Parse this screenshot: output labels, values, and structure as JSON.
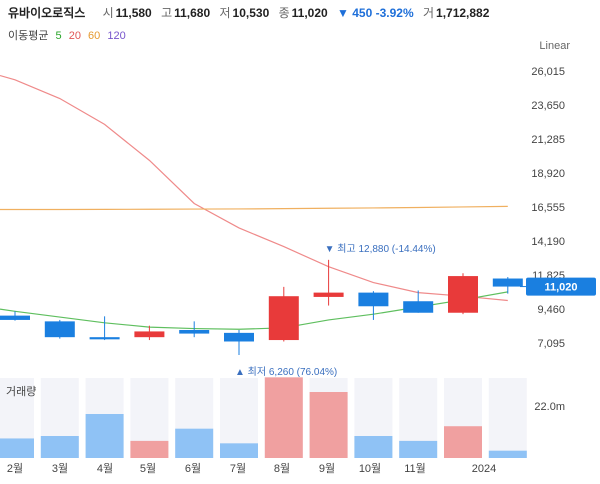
{
  "header": {
    "name": "유바이오로직스",
    "open_label": "시",
    "open": "11,580",
    "high_label": "고",
    "high": "11,680",
    "low_label": "저",
    "low": "10,530",
    "close_label": "종",
    "close": "11,020",
    "change": "▼ 450 -3.92%",
    "volume_label": "거",
    "volume": "1,712,882"
  },
  "ma_legend": {
    "label": "이동평균",
    "periods": [
      {
        "value": "5",
        "color": "#2aa52a"
      },
      {
        "value": "20",
        "color": "#e05555"
      },
      {
        "value": "60",
        "color": "#e69a2e"
      },
      {
        "value": "120",
        "color": "#7755cc"
      }
    ]
  },
  "scale_type": "Linear",
  "current_price_tag": "11,020",
  "colors": {
    "up": "#e83a3a",
    "down": "#1a7fe0",
    "up_vol": "#f0a0a0",
    "down_vol": "#8fc2f5",
    "ma5": "#5fbf5f",
    "ma20": "#ef8a8a",
    "ma60": "#f0b060"
  },
  "chart_data": {
    "type": "candlestick",
    "y_ticks": [
      "26,015",
      "23,650",
      "21,285",
      "18,920",
      "16,555",
      "14,190",
      "11,825",
      "9,460",
      "7,095"
    ],
    "ylim": [
      7095,
      26015
    ],
    "x_labels": [
      "2월",
      "3월",
      "4월",
      "5월",
      "6월",
      "7월",
      "8월",
      "9월",
      "10월",
      "11월",
      "2024"
    ],
    "candles": [
      {
        "o": 9000,
        "h": 9300,
        "l": 8650,
        "c": 8700
      },
      {
        "o": 8600,
        "h": 8700,
        "l": 7400,
        "c": 7500
      },
      {
        "o": 7500,
        "h": 8950,
        "l": 7300,
        "c": 7350
      },
      {
        "o": 7500,
        "h": 8300,
        "l": 7300,
        "c": 7900
      },
      {
        "o": 8000,
        "h": 8600,
        "l": 7500,
        "c": 7750
      },
      {
        "o": 7800,
        "h": 8000,
        "l": 6260,
        "c": 7200
      },
      {
        "o": 7300,
        "h": 11000,
        "l": 7200,
        "c": 10350
      },
      {
        "o": 10300,
        "h": 12880,
        "l": 9700,
        "c": 10600
      },
      {
        "o": 10600,
        "h": 10700,
        "l": 8700,
        "c": 9650
      },
      {
        "o": 10000,
        "h": 10750,
        "l": 9200,
        "c": 9200
      },
      {
        "o": 9200,
        "h": 11950,
        "l": 9100,
        "c": 11750
      },
      {
        "o": 11580,
        "h": 11680,
        "l": 10530,
        "c": 11020
      }
    ],
    "ma20": [
      25400,
      24100,
      22300,
      19800,
      16800,
      15100,
      13800,
      12400,
      11300,
      10600,
      10350,
      10050
    ],
    "ma60": [
      16380,
      16380,
      16390,
      16400,
      16410,
      16420,
      16440,
      16470,
      16490,
      16520,
      16560,
      16600
    ],
    "ma5": [
      9300,
      8900,
      8500,
      8200,
      8100,
      8050,
      8150,
      8700,
      9100,
      9600,
      10100,
      10650
    ],
    "annotations": [
      {
        "label": "▼ 최고 12,880 (-14.44%)",
        "value": 12880,
        "index": 7
      },
      {
        "label": "▲ 최저 6,260 (76.04%)",
        "value": 6260,
        "index": 5
      }
    ],
    "volume_label": "거래량",
    "volume_tick": "22.0m",
    "volume_max": 36,
    "volumes": [
      4,
      4.5,
      9,
      3.5,
      6,
      3,
      16.5,
      13.5,
      4.5,
      3.5,
      6.5,
      1.5
    ]
  }
}
